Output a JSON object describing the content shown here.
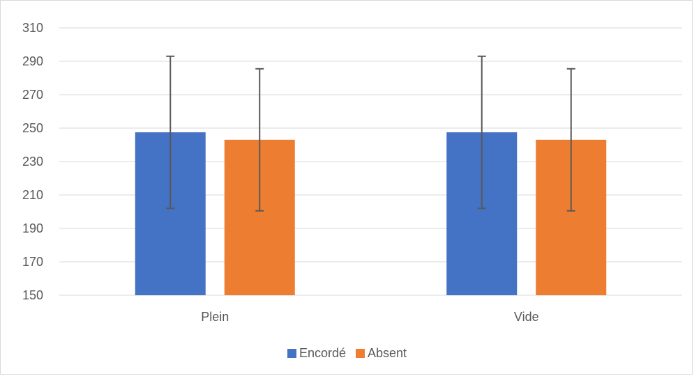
{
  "chart_data": {
    "type": "bar",
    "title": "",
    "xlabel": "",
    "ylabel": "",
    "ylim": [
      150,
      310
    ],
    "yticks": [
      150,
      170,
      190,
      210,
      230,
      250,
      270,
      290,
      310
    ],
    "categories": [
      "Plein",
      "Vide"
    ],
    "series": [
      {
        "name": "Encordé",
        "color": "#4472C4",
        "values": [
          247.5,
          247.5
        ],
        "error": [
          45.5,
          45.5
        ]
      },
      {
        "name": "Absent",
        "color": "#ED7D31",
        "values": [
          243,
          243
        ],
        "error": [
          42.5,
          42.5
        ]
      }
    ],
    "grid": true,
    "legend_position": "bottom"
  }
}
